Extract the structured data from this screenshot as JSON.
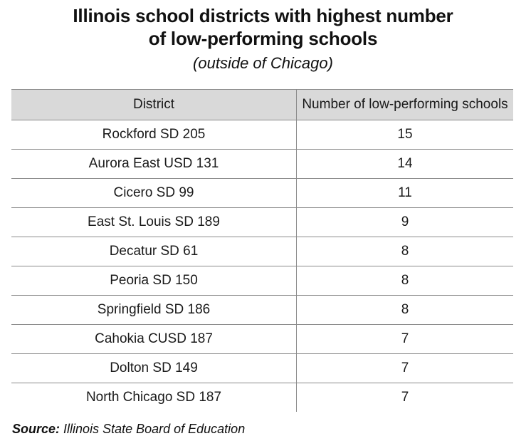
{
  "chart_data": {
    "type": "table",
    "title": "Illinois school districts with highest number of low-performing schools",
    "subtitle": "(outside of Chicago)",
    "columns": [
      "District",
      "Number of low-performing schools"
    ],
    "rows": [
      {
        "district": "Rockford SD 205",
        "count": 15
      },
      {
        "district": "Aurora East USD 131",
        "count": 14
      },
      {
        "district": "Cicero SD 99",
        "count": 11
      },
      {
        "district": "East St. Louis SD 189",
        "count": 9
      },
      {
        "district": "Decatur SD 61",
        "count": 8
      },
      {
        "district": "Peoria SD 150",
        "count": 8
      },
      {
        "district": "Springfield SD 186",
        "count": 8
      },
      {
        "district": "Cahokia CUSD 187",
        "count": 7
      },
      {
        "district": "Dolton SD 149",
        "count": 7
      },
      {
        "district": "North Chicago SD 187",
        "count": 7
      }
    ],
    "header_background": "#d9d9d9",
    "rule_color": "#8a8a8a"
  },
  "source": {
    "label": "Source:",
    "text": "Illinois State Board of Education"
  }
}
